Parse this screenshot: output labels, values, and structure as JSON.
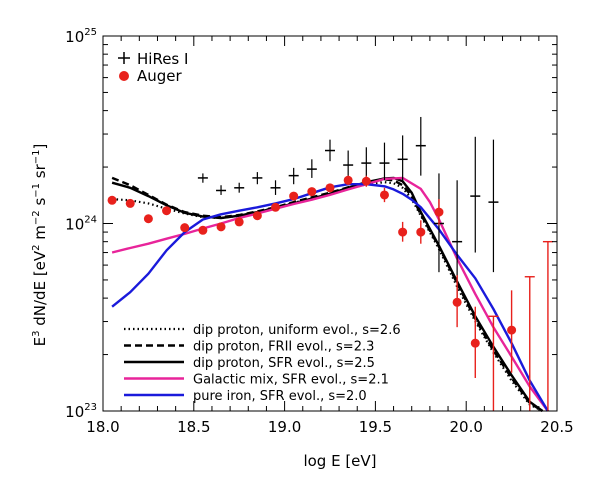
{
  "chart_data": {
    "type": "scatter",
    "xlabel": "log E [eV]",
    "ylabel": {
      "main": "E",
      "sup1": "3",
      "mid": " dN/dE [eV",
      "sup2": "2",
      "m": " m",
      "sup3": "−2",
      "s": " s",
      "sup4": "−1",
      "sr": " sr",
      "sup5": "−1",
      "end": "]"
    },
    "xlim": [
      18.0,
      20.5
    ],
    "ylim": [
      1e+23,
      1e+25
    ],
    "yscale": "log",
    "x_ticks": [
      "18.0",
      "18.5",
      "19.0",
      "19.5",
      "20.0",
      "20.5"
    ],
    "x_tick_values": [
      18.0,
      18.5,
      19.0,
      19.5,
      20.0,
      20.5
    ],
    "y_ticks": [
      {
        "value": 1e+23,
        "base": "10",
        "exp": "23"
      },
      {
        "value": 1e+24,
        "base": "10",
        "exp": "24"
      },
      {
        "value": 1e+25,
        "base": "10",
        "exp": "25"
      }
    ],
    "legend_points": [
      {
        "name": "HiRes I",
        "marker": "plus",
        "color": "#000000"
      },
      {
        "name": "Auger",
        "marker": "circle",
        "color": "#e8211c"
      }
    ],
    "legend_curves": [
      {
        "name": "dip proton, uniform evol., s=2.6",
        "color": "#000000",
        "dash": "dotted"
      },
      {
        "name": "dip proton, FRII evol., s=2.3",
        "color": "#000000",
        "dash": "dashed"
      },
      {
        "name": "dip proton, SFR evol., s=2.5",
        "color": "#000000",
        "dash": "solid"
      },
      {
        "name": "Galactic mix, SFR evol., s=2.1",
        "color": "#e8249a",
        "dash": "solid"
      },
      {
        "name": "pure iron, SFR evol., s=2.0",
        "color": "#1a1adb",
        "dash": "solid"
      }
    ],
    "hires": [
      {
        "x": 18.55,
        "y": 1.75e+24,
        "lo": 1.65e+24,
        "hi": 1.85e+24
      },
      {
        "x": 18.65,
        "y": 1.5e+24,
        "lo": 1.42e+24,
        "hi": 1.6e+24
      },
      {
        "x": 18.75,
        "y": 1.55e+24,
        "lo": 1.46e+24,
        "hi": 1.65e+24
      },
      {
        "x": 18.85,
        "y": 1.75e+24,
        "lo": 1.62e+24,
        "hi": 1.88e+24
      },
      {
        "x": 18.95,
        "y": 1.55e+24,
        "lo": 1.42e+24,
        "hi": 1.7e+24
      },
      {
        "x": 19.05,
        "y": 1.8e+24,
        "lo": 1.62e+24,
        "hi": 1.98e+24
      },
      {
        "x": 19.15,
        "y": 1.95e+24,
        "lo": 1.75e+24,
        "hi": 2.2e+24
      },
      {
        "x": 19.25,
        "y": 2.45e+24,
        "lo": 2.15e+24,
        "hi": 2.8e+24
      },
      {
        "x": 19.35,
        "y": 2.05e+24,
        "lo": 1.75e+24,
        "hi": 2.45e+24
      },
      {
        "x": 19.45,
        "y": 2.1e+24,
        "lo": 1.75e+24,
        "hi": 2.55e+24
      },
      {
        "x": 19.55,
        "y": 2.1e+24,
        "lo": 1.7e+24,
        "hi": 2.7e+24
      },
      {
        "x": 19.65,
        "y": 2.2e+24,
        "lo": 1.65e+24,
        "hi": 2.95e+24
      },
      {
        "x": 19.75,
        "y": 2.6e+24,
        "lo": 1.8e+24,
        "hi": 3.7e+24
      },
      {
        "x": 19.85,
        "y": 1e+24,
        "lo": 5.5e+23,
        "hi": 1.85e+24
      },
      {
        "x": 19.95,
        "y": 8e+23,
        "lo": 4e+23,
        "hi": 1.7e+24
      },
      {
        "x": 20.05,
        "y": 1.4e+24,
        "lo": 7e+23,
        "hi": 2.9e+24
      },
      {
        "x": 20.15,
        "y": 1.3e+24,
        "lo": 5.5e+23,
        "hi": 2.8e+24
      }
    ],
    "auger": [
      {
        "x": 18.05,
        "y": 1.33e+24,
        "lo": 1.27e+24,
        "hi": 1.4e+24
      },
      {
        "x": 18.15,
        "y": 1.28e+24,
        "lo": 1.23e+24,
        "hi": 1.34e+24
      },
      {
        "x": 18.25,
        "y": 1.06e+24,
        "lo": 1.01e+24,
        "hi": 1.11e+24
      },
      {
        "x": 18.35,
        "y": 1.17e+24,
        "lo": 1.12e+24,
        "hi": 1.22e+24
      },
      {
        "x": 18.45,
        "y": 9.5e+23,
        "lo": 9.1e+23,
        "hi": 9.9e+23
      },
      {
        "x": 18.55,
        "y": 9.2e+23,
        "lo": 8.9e+23,
        "hi": 9.5e+23
      },
      {
        "x": 18.65,
        "y": 9.6e+23,
        "lo": 9.3e+23,
        "hi": 9.9e+23
      },
      {
        "x": 18.75,
        "y": 1.02e+24,
        "lo": 9.9e+23,
        "hi": 1.05e+24
      },
      {
        "x": 18.85,
        "y": 1.1e+24,
        "lo": 1.07e+24,
        "hi": 1.13e+24
      },
      {
        "x": 18.95,
        "y": 1.22e+24,
        "lo": 1.18e+24,
        "hi": 1.26e+24
      },
      {
        "x": 19.05,
        "y": 1.4e+24,
        "lo": 1.35e+24,
        "hi": 1.45e+24
      },
      {
        "x": 19.15,
        "y": 1.48e+24,
        "lo": 1.42e+24,
        "hi": 1.54e+24
      },
      {
        "x": 19.25,
        "y": 1.55e+24,
        "lo": 1.48e+24,
        "hi": 1.62e+24
      },
      {
        "x": 19.35,
        "y": 1.7e+24,
        "lo": 1.61e+24,
        "hi": 1.8e+24
      },
      {
        "x": 19.45,
        "y": 1.68e+24,
        "lo": 1.57e+24,
        "hi": 1.8e+24
      },
      {
        "x": 19.55,
        "y": 1.42e+24,
        "lo": 1.3e+24,
        "hi": 1.55e+24
      },
      {
        "x": 19.65,
        "y": 9e+23,
        "lo": 8e+23,
        "hi": 1.02e+24
      },
      {
        "x": 19.75,
        "y": 9e+23,
        "lo": 7.8e+23,
        "hi": 1.04e+24
      },
      {
        "x": 19.85,
        "y": 1.15e+24,
        "lo": 9.8e+23,
        "hi": 1.35e+24
      },
      {
        "x": 19.95,
        "y": 3.8e+23,
        "lo": 2.8e+23,
        "hi": 5.3e+23
      },
      {
        "x": 20.05,
        "y": 2.3e+23,
        "lo": 1.5e+23,
        "hi": 3.6e+23
      },
      {
        "x": 20.15,
        "y": null,
        "lo": 1e+23,
        "hi": 3.2e+23
      },
      {
        "x": 20.25,
        "y": 2.7e+23,
        "lo": 1.6e+23,
        "hi": 4.4e+23
      },
      {
        "x": 20.35,
        "y": null,
        "lo": 1e+23,
        "hi": 5.2e+23
      },
      {
        "x": 20.45,
        "y": null,
        "lo": 1e+23,
        "hi": 8e+23
      }
    ],
    "curves": [
      {
        "name": "dip proton, uniform evol., s=2.6",
        "color": "#000000",
        "dash": "dotted",
        "x": [
          18.05,
          18.15,
          18.25,
          18.35,
          18.45,
          18.55,
          18.65,
          18.75,
          18.85,
          18.95,
          19.05,
          19.15,
          19.25,
          19.35,
          19.45,
          19.55,
          19.6,
          19.65,
          19.7,
          19.75,
          19.85,
          19.95,
          20.05,
          20.15,
          20.25,
          20.35,
          20.42
        ],
        "y": [
          1.35e+24,
          1.33e+24,
          1.28e+24,
          1.2e+24,
          1.13e+24,
          1.08e+24,
          1.07e+24,
          1.1e+24,
          1.15e+24,
          1.22e+24,
          1.29e+24,
          1.36e+24,
          1.43e+24,
          1.53e+24,
          1.62e+24,
          1.66e+24,
          1.64e+24,
          1.55e+24,
          1.35e+24,
          1.1e+24,
          7.3e+23,
          4.6e+23,
          3e+23,
          2.05e+23,
          1.45e+23,
          1.08e+23,
          1e+23
        ]
      },
      {
        "name": "dip proton, FRII evol., s=2.3",
        "color": "#000000",
        "dash": "dashed",
        "x": [
          18.05,
          18.15,
          18.25,
          18.35,
          18.45,
          18.55,
          18.65,
          18.75,
          18.85,
          18.95,
          19.05,
          19.15,
          19.25,
          19.35,
          19.45,
          19.55,
          19.6,
          19.65,
          19.7,
          19.75,
          19.85,
          19.95,
          20.05,
          20.15,
          20.25,
          20.35,
          20.42
        ],
        "y": [
          1.75e+24,
          1.6e+24,
          1.42e+24,
          1.26e+24,
          1.15e+24,
          1.1e+24,
          1.08e+24,
          1.11e+24,
          1.16e+24,
          1.22e+24,
          1.3e+24,
          1.38e+24,
          1.46e+24,
          1.56e+24,
          1.66e+24,
          1.72e+24,
          1.7e+24,
          1.6e+24,
          1.4e+24,
          1.12e+24,
          7.5e+23,
          4.8e+23,
          3.1e+23,
          2.1e+23,
          1.5e+23,
          1.1e+23,
          1e+23
        ]
      },
      {
        "name": "dip proton, SFR evol., s=2.5",
        "color": "#000000",
        "dash": "solid",
        "x": [
          18.05,
          18.15,
          18.25,
          18.35,
          18.45,
          18.55,
          18.65,
          18.75,
          18.85,
          18.95,
          19.05,
          19.15,
          19.25,
          19.35,
          19.45,
          19.55,
          19.6,
          19.65,
          19.7,
          19.75,
          19.85,
          19.95,
          20.05,
          20.15,
          20.25,
          20.35,
          20.42
        ],
        "y": [
          1.65e+24,
          1.55e+24,
          1.4e+24,
          1.25e+24,
          1.14e+24,
          1.09e+24,
          1.07e+24,
          1.1e+24,
          1.15e+24,
          1.21e+24,
          1.28e+24,
          1.36e+24,
          1.44e+24,
          1.55e+24,
          1.66e+24,
          1.74e+24,
          1.75e+24,
          1.68e+24,
          1.46e+24,
          1.15e+24,
          7.6e+23,
          4.9e+23,
          3.2e+23,
          2.2e+23,
          1.55e+23,
          1.12e+23,
          1e+23
        ]
      },
      {
        "name": "Galactic mix, SFR evol., s=2.1",
        "color": "#e8249a",
        "dash": "solid",
        "x": [
          18.05,
          18.15,
          18.25,
          18.35,
          18.45,
          18.55,
          18.65,
          18.75,
          18.85,
          18.95,
          19.05,
          19.15,
          19.25,
          19.35,
          19.45,
          19.55,
          19.65,
          19.75,
          19.8,
          19.85,
          19.95,
          20.05,
          20.15,
          20.25,
          20.35,
          20.45
        ],
        "y": [
          7e+23,
          7.4e+23,
          7.8e+23,
          8.3e+23,
          8.8e+23,
          9.4e+23,
          1e+24,
          1.07e+24,
          1.13e+24,
          1.2e+24,
          1.27e+24,
          1.34e+24,
          1.42e+24,
          1.52e+24,
          1.62e+24,
          1.73e+24,
          1.75e+24,
          1.53e+24,
          1.3e+24,
          1.05e+24,
          6.5e+23,
          4.2e+23,
          2.8e+23,
          1.95e+23,
          1.35e+23,
          1e+23
        ]
      },
      {
        "name": "pure iron, SFR evol., s=2.0",
        "color": "#1a1adb",
        "dash": "solid",
        "x": [
          18.05,
          18.15,
          18.25,
          18.35,
          18.45,
          18.55,
          18.65,
          18.75,
          18.85,
          18.95,
          19.05,
          19.15,
          19.25,
          19.35,
          19.45,
          19.55,
          19.6,
          19.65,
          19.7,
          19.75,
          19.85,
          19.95,
          20.05,
          20.15,
          20.25,
          20.35,
          20.45
        ],
        "y": [
          3.6e+23,
          4.3e+23,
          5.4e+23,
          7.2e+23,
          9e+23,
          1.05e+24,
          1.12e+24,
          1.17e+24,
          1.22e+24,
          1.28e+24,
          1.35e+24,
          1.45e+24,
          1.56e+24,
          1.62e+24,
          1.62e+24,
          1.58e+24,
          1.52e+24,
          1.44e+24,
          1.34e+24,
          1.22e+24,
          9.3e+23,
          6.8e+23,
          5.1e+23,
          3.5e+23,
          2.3e+23,
          1.45e+23,
          1e+23
        ]
      }
    ]
  }
}
